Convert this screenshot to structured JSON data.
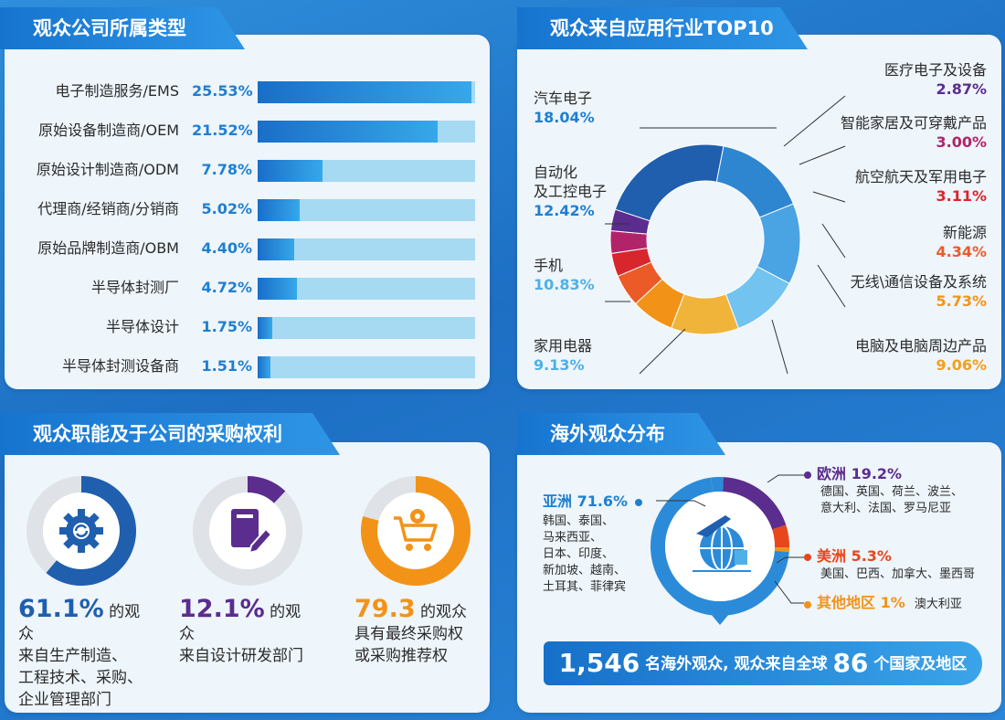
{
  "colors": {
    "blue": "#1f7fd0",
    "purple": "#5b2d8e",
    "orange": "#f29318",
    "light_blue": "#4fb0e8",
    "red": "#e8461b"
  },
  "panel1": {
    "title": "观众公司所属类型"
  },
  "panel2": {
    "title": "观众来自应用行业TOP10"
  },
  "panel3": {
    "title": "观众职能及于公司的采购权利",
    "rings": [
      {
        "value": 0.611,
        "color": "#1f5fae",
        "icon": "gear-refresh-icon",
        "big": "61.1%",
        "text1": " 的观众",
        "lines": [
          "来自生产制造、",
          "工程技术、采购、",
          "企业管理部门"
        ]
      },
      {
        "value": 0.121,
        "color": "#5b2d8e",
        "icon": "document-pencil-icon",
        "big": "12.1%",
        "text1": " 的观众",
        "lines": [
          "来自设计研发部门"
        ]
      },
      {
        "value": 0.793,
        "color": "#f29318",
        "icon": "shopping-cart-icon",
        "big": "79.3",
        "text1": " 的观众",
        "lines": [
          "具有最终采购权",
          "或采购推荐权"
        ]
      }
    ]
  },
  "panel4": {
    "title": "海外观众分布",
    "asia": {
      "head": "亚洲 71.6%",
      "lines": [
        "韩国、泰国、",
        "马来西亚、",
        "日本、印度、",
        "新加坡、越南、",
        "土耳其、菲律宾"
      ]
    },
    "europe": {
      "head": "欧洲 19.2%",
      "lines": [
        "德国、英国、荷兰、波兰、",
        "意大利、法国、罗马尼亚"
      ]
    },
    "america": {
      "head": "美洲 5.3%",
      "text": "美国、巴西、加拿大、墨西哥"
    },
    "other": {
      "head": "其他地区 1%",
      "text": "澳大利亚"
    },
    "banner": {
      "num1": "1,546",
      "text1": " 名海外观众, 观众来自全球 ",
      "num2": "86",
      "text2": " 个国家及地区"
    }
  },
  "chart_data": [
    {
      "type": "bar",
      "categories": [
        "电子制造服务/EMS",
        "原始设备制造商/OEM",
        "原始设计制造商/ODM",
        "代理商/经销商/分销商",
        "原始品牌制造商/OBM",
        "半导体封测厂",
        "半导体设计",
        "半导体封测设备商"
      ],
      "values": [
        25.53,
        21.52,
        7.78,
        5.02,
        4.4,
        4.72,
        1.75,
        1.51
      ],
      "labels": [
        "25.53%",
        "21.52%",
        "7.78%",
        "5.02%",
        "4.40%",
        "4.72%",
        "1.75%",
        "1.51%"
      ],
      "max": 26
    },
    {
      "type": "pie",
      "categories": [
        "汽车电子",
        "自动化及工控电子",
        "手机",
        "家用电器",
        "电脑及电脑周边产品",
        "无线\\通信设备及系统",
        "新能源",
        "航空航天及军用电子",
        "智能家居及可穿戴产品",
        "医疗电子及设备"
      ],
      "values": [
        18.04,
        12.42,
        10.83,
        9.13,
        9.06,
        5.73,
        4.34,
        3.11,
        3.0,
        2.87
      ],
      "labels": [
        "18.04%",
        "12.42%",
        "10.83%",
        "9.13%",
        "9.06%",
        "5.73%",
        "4.34%",
        "3.11%",
        "3.00%",
        "2.87%"
      ],
      "colors": [
        "#1f5fae",
        "#2f86d0",
        "#4aa3e3",
        "#72c3ef",
        "#f0b43a",
        "#f29318",
        "#ec5a28",
        "#d8262d",
        "#b2246a",
        "#5b2d8e"
      ]
    },
    {
      "type": "pie",
      "categories": [
        "亚洲",
        "欧洲",
        "美洲",
        "其他地区"
      ],
      "values": [
        71.6,
        19.2,
        5.3,
        1
      ],
      "colors": [
        "#2b8bd8",
        "#5b2d8e",
        "#e8461b",
        "#f29318"
      ]
    }
  ]
}
